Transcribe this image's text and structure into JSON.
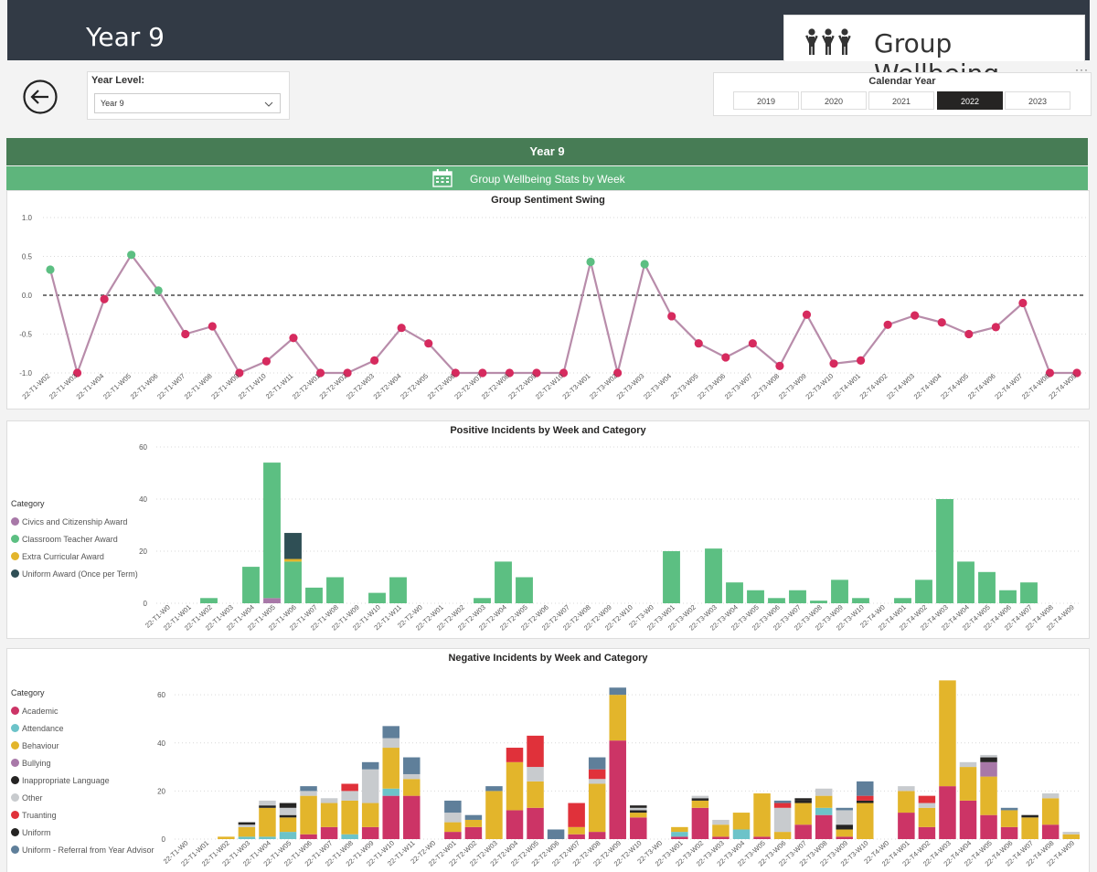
{
  "header": {
    "title": "Year 9",
    "brand_title": "Group Wellbeing",
    "more_icon": "ellipsis-icon"
  },
  "year_level": {
    "label": "Year Level:",
    "value": "Year 9"
  },
  "calendar_year": {
    "label": "Calendar Year",
    "options": [
      "2019",
      "2020",
      "2021",
      "2022",
      "2023"
    ],
    "selected": "2022"
  },
  "bands": {
    "group": "Year 9",
    "stats": "Group Wellbeing Stats by Week"
  },
  "colors": {
    "dark_header": "#323a45",
    "band_dark": "#477c55",
    "band_light": "#5eb57c",
    "line": "#b88caa",
    "positive_point": "#5cbf82",
    "negative_point": "#d62a5e"
  },
  "sentiment": {
    "title": "Group Sentiment Swing",
    "yticks": [
      "1.0",
      "0.5",
      "0.0",
      "-0.5",
      "-1.0"
    ],
    "chart_data": {
      "type": "line",
      "title": "Group Sentiment Swing",
      "ylim": [
        -1,
        1
      ],
      "x": [
        "22-T1-W02",
        "22-T1-W03",
        "22-T1-W04",
        "22-T1-W05",
        "22-T1-W06",
        "22-T1-W07",
        "22-T1-W08",
        "22-T1-W09",
        "22-T1-W10",
        "22-T1-W11",
        "22-T2-W01",
        "22-T2-W02",
        "22-T2-W03",
        "22-T2-W04",
        "22-T2-W05",
        "22-T2-W06",
        "22-T2-W07",
        "22-T2-W08",
        "22-T2-W09",
        "22-T2-W10",
        "22-T3-W01",
        "22-T3-W02",
        "22-T3-W03",
        "22-T3-W04",
        "22-T3-W05",
        "22-T3-W06",
        "22-T3-W07",
        "22-T3-W08",
        "22-T3-W09",
        "22-T3-W10",
        "22-T4-W01",
        "22-T4-W02",
        "22-T4-W03",
        "22-T4-W04",
        "22-T4-W05",
        "22-T4-W06",
        "22-T4-W07",
        "22-T4-W08",
        "22-T4-W09"
      ],
      "y": [
        0.33,
        -1.0,
        -0.05,
        0.52,
        0.06,
        -0.5,
        -0.4,
        -1.0,
        -0.85,
        -0.55,
        -1.0,
        -1.0,
        -0.84,
        -0.42,
        -0.62,
        -1.0,
        -1.0,
        -1.0,
        -1.0,
        -1.0,
        0.43,
        -1.0,
        0.4,
        -0.27,
        -0.62,
        -0.8,
        -0.62,
        -0.91,
        -0.25,
        -0.88,
        -0.84,
        -0.38,
        -0.26,
        -0.35,
        -0.5,
        -0.41,
        -0.1,
        -1.0,
        -1.0
      ]
    }
  },
  "positive": {
    "title": "Positive Incidents by Week and Category",
    "yticks": [
      "60",
      "40",
      "20",
      "0"
    ],
    "legend_title": "Category",
    "chart_data": {
      "type": "bar",
      "stacked": true,
      "title": "Positive Incidents by Week and Category",
      "ylim": [
        0,
        60
      ],
      "categories": [
        "22-T1-W0",
        "22-T1-W01",
        "22-T1-W02",
        "22-T1-W03",
        "22-T1-W04",
        "22-T1-W05",
        "22-T1-W06",
        "22-T1-W07",
        "22-T1-W08",
        "22-T1-W09",
        "22-T1-W10",
        "22-T1-W11",
        "22-T2-W0",
        "22-T2-W01",
        "22-T2-W02",
        "22-T2-W03",
        "22-T2-W04",
        "22-T2-W05",
        "22-T2-W06",
        "22-T2-W07",
        "22-T2-W08",
        "22-T2-W09",
        "22-T2-W10",
        "22-T3-W0",
        "22-T3-W01",
        "22-T3-W02",
        "22-T3-W03",
        "22-T3-W04",
        "22-T3-W05",
        "22-T3-W06",
        "22-T3-W07",
        "22-T3-W08",
        "22-T3-W09",
        "22-T3-W10",
        "22-T4-W0",
        "22-T4-W01",
        "22-T4-W02",
        "22-T4-W03",
        "22-T4-W04",
        "22-T4-W05",
        "22-T4-W06",
        "22-T4-W07",
        "22-T4-W08",
        "22-T4-W09"
      ],
      "series": [
        {
          "name": "Civics and Citizenship Award",
          "color": "#a878a8",
          "values": [
            0,
            0,
            0,
            0,
            0,
            2,
            0,
            0,
            0,
            0,
            0,
            0,
            0,
            0,
            0,
            0,
            0,
            0,
            0,
            0,
            0,
            0,
            0,
            0,
            0,
            0,
            0,
            0,
            0,
            0,
            0,
            0,
            0,
            0,
            0,
            0,
            0,
            0,
            0,
            0,
            0,
            0,
            0,
            0
          ]
        },
        {
          "name": "Classroom Teacher Award",
          "color": "#5cbf82",
          "values": [
            0,
            0,
            2,
            0,
            14,
            52,
            16,
            6,
            10,
            0,
            4,
            10,
            0,
            0,
            0,
            2,
            16,
            10,
            0,
            0,
            0,
            0,
            0,
            0,
            20,
            0,
            21,
            8,
            5,
            2,
            5,
            1,
            9,
            2,
            0,
            2,
            9,
            40,
            16,
            12,
            5,
            8,
            0,
            0
          ]
        },
        {
          "name": "Extra Curricular Award",
          "color": "#e3b52b",
          "values": [
            0,
            0,
            0,
            0,
            0,
            0,
            1,
            0,
            0,
            0,
            0,
            0,
            0,
            0,
            0,
            0,
            0,
            0,
            0,
            0,
            0,
            0,
            0,
            0,
            0,
            0,
            0,
            0,
            0,
            0,
            0,
            0,
            0,
            0,
            0,
            0,
            0,
            0,
            0,
            0,
            0,
            0,
            0,
            0
          ]
        },
        {
          "name": "Uniform Award (Once per Term)",
          "color": "#2f4f55",
          "values": [
            0,
            0,
            0,
            0,
            0,
            0,
            10,
            0,
            0,
            0,
            0,
            0,
            0,
            0,
            0,
            0,
            0,
            0,
            0,
            0,
            0,
            0,
            0,
            0,
            0,
            0,
            0,
            0,
            0,
            0,
            0,
            0,
            0,
            0,
            0,
            0,
            0,
            0,
            0,
            0,
            0,
            0,
            0,
            0
          ]
        }
      ]
    }
  },
  "negative": {
    "title": "Negative Incidents by Week and Category",
    "yticks": [
      "60",
      "40",
      "20",
      "0"
    ],
    "legend_title": "Category",
    "chart_data": {
      "type": "bar",
      "stacked": true,
      "title": "Negative Incidents by Week and Category",
      "ylim": [
        0,
        65
      ],
      "categories": [
        "22-T1-W0",
        "22-T1-W01",
        "22-T1-W02",
        "22-T1-W03",
        "22-T1-W04",
        "22-T1-W05",
        "22-T1-W06",
        "22-T1-W07",
        "22-T1-W08",
        "22-T1-W09",
        "22-T1-W10",
        "22-T1-W11",
        "22-T2-W0",
        "22-T2-W01",
        "22-T2-W02",
        "22-T2-W03",
        "22-T2-W04",
        "22-T2-W05",
        "22-T2-W06",
        "22-T2-W07",
        "22-T2-W08",
        "22-T2-W09",
        "22-T2-W10",
        "22-T3-W0",
        "22-T3-W01",
        "22-T3-W02",
        "22-T3-W03",
        "22-T3-W04",
        "22-T3-W05",
        "22-T3-W06",
        "22-T3-W07",
        "22-T3-W08",
        "22-T3-W09",
        "22-T3-W10",
        "22-T4-W0",
        "22-T4-W01",
        "22-T4-W02",
        "22-T4-W03",
        "22-T4-W04",
        "22-T4-W05",
        "22-T4-W06",
        "22-T4-W07",
        "22-T4-W08",
        "22-T4-W09"
      ],
      "series": [
        {
          "name": "Academic",
          "color": "#cc3466",
          "values": [
            0,
            0,
            0,
            0,
            0,
            0,
            2,
            5,
            0,
            5,
            18,
            18,
            0,
            3,
            5,
            0,
            12,
            13,
            0,
            2,
            3,
            41,
            9,
            0,
            1,
            13,
            1,
            0,
            1,
            0,
            6,
            10,
            1,
            0,
            0,
            11,
            5,
            22,
            16,
            10,
            5,
            0,
            6,
            0
          ]
        },
        {
          "name": "Attendance",
          "color": "#6cc3c9",
          "values": [
            0,
            0,
            0,
            1,
            1,
            3,
            0,
            0,
            2,
            0,
            3,
            0,
            0,
            0,
            0,
            0,
            0,
            0,
            0,
            0,
            0,
            0,
            0,
            0,
            2,
            0,
            0,
            4,
            0,
            0,
            0,
            3,
            0,
            0,
            0,
            0,
            0,
            0,
            0,
            0,
            0,
            0,
            0,
            0
          ]
        },
        {
          "name": "Behaviour",
          "color": "#e3b52b",
          "values": [
            0,
            0,
            1,
            4,
            12,
            6,
            16,
            10,
            14,
            10,
            17,
            7,
            0,
            4,
            3,
            20,
            20,
            11,
            0,
            3,
            20,
            19,
            2,
            0,
            2,
            3,
            5,
            7,
            18,
            3,
            9,
            5,
            3,
            15,
            0,
            9,
            8,
            44,
            14,
            16,
            7,
            9,
            11,
            2
          ]
        },
        {
          "name": "Bullying",
          "color": "#a878a8",
          "values": [
            0,
            0,
            0,
            0,
            0,
            0,
            0,
            0,
            0,
            0,
            0,
            0,
            0,
            0,
            0,
            0,
            0,
            0,
            0,
            0,
            0,
            0,
            0,
            0,
            0,
            0,
            0,
            0,
            0,
            0,
            0,
            0,
            0,
            0,
            0,
            0,
            0,
            0,
            0,
            6,
            0,
            0,
            0,
            0
          ]
        },
        {
          "name": "Inappropriate Language",
          "color": "#252423",
          "values": [
            0,
            0,
            0,
            0,
            1,
            1,
            0,
            0,
            0,
            0,
            0,
            0,
            0,
            0,
            0,
            0,
            0,
            0,
            0,
            0,
            0,
            0,
            1,
            0,
            0,
            1,
            0,
            0,
            0,
            0,
            1,
            0,
            2,
            1,
            0,
            0,
            0,
            0,
            0,
            2,
            0,
            1,
            0,
            0
          ]
        },
        {
          "name": "Other",
          "color": "#c8cbce",
          "values": [
            0,
            0,
            0,
            1,
            2,
            3,
            2,
            2,
            4,
            14,
            4,
            2,
            0,
            4,
            0,
            0,
            0,
            6,
            0,
            0,
            2,
            0,
            1,
            0,
            0,
            1,
            2,
            0,
            0,
            10,
            0,
            3,
            6,
            0,
            0,
            2,
            2,
            0,
            2,
            1,
            0,
            0,
            2,
            1
          ]
        },
        {
          "name": "Truanting",
          "color": "#e0313a",
          "values": [
            0,
            0,
            0,
            0,
            0,
            0,
            0,
            0,
            3,
            0,
            0,
            0,
            0,
            0,
            0,
            0,
            6,
            13,
            0,
            10,
            4,
            0,
            0,
            0,
            0,
            0,
            0,
            0,
            0,
            2,
            0,
            0,
            0,
            2,
            0,
            0,
            3,
            0,
            0,
            0,
            0,
            0,
            0,
            0
          ]
        },
        {
          "name": "Uniform",
          "color": "#252423",
          "values": [
            0,
            0,
            0,
            1,
            0,
            2,
            0,
            0,
            0,
            0,
            0,
            0,
            0,
            0,
            0,
            0,
            0,
            0,
            0,
            0,
            0,
            0,
            1,
            0,
            0,
            0,
            0,
            0,
            0,
            0,
            1,
            0,
            0,
            0,
            0,
            0,
            0,
            0,
            0,
            0,
            0,
            0,
            0,
            0
          ]
        },
        {
          "name": "Uniform - Referral from Year Advisor",
          "color": "#5f7f9a",
          "values": [
            0,
            0,
            0,
            0,
            0,
            0,
            2,
            0,
            0,
            3,
            5,
            7,
            0,
            5,
            2,
            2,
            0,
            0,
            4,
            0,
            5,
            3,
            0,
            0,
            0,
            0,
            0,
            0,
            0,
            1,
            0,
            0,
            1,
            6,
            0,
            0,
            0,
            0,
            0,
            0,
            1,
            0,
            0,
            0
          ]
        }
      ]
    }
  }
}
